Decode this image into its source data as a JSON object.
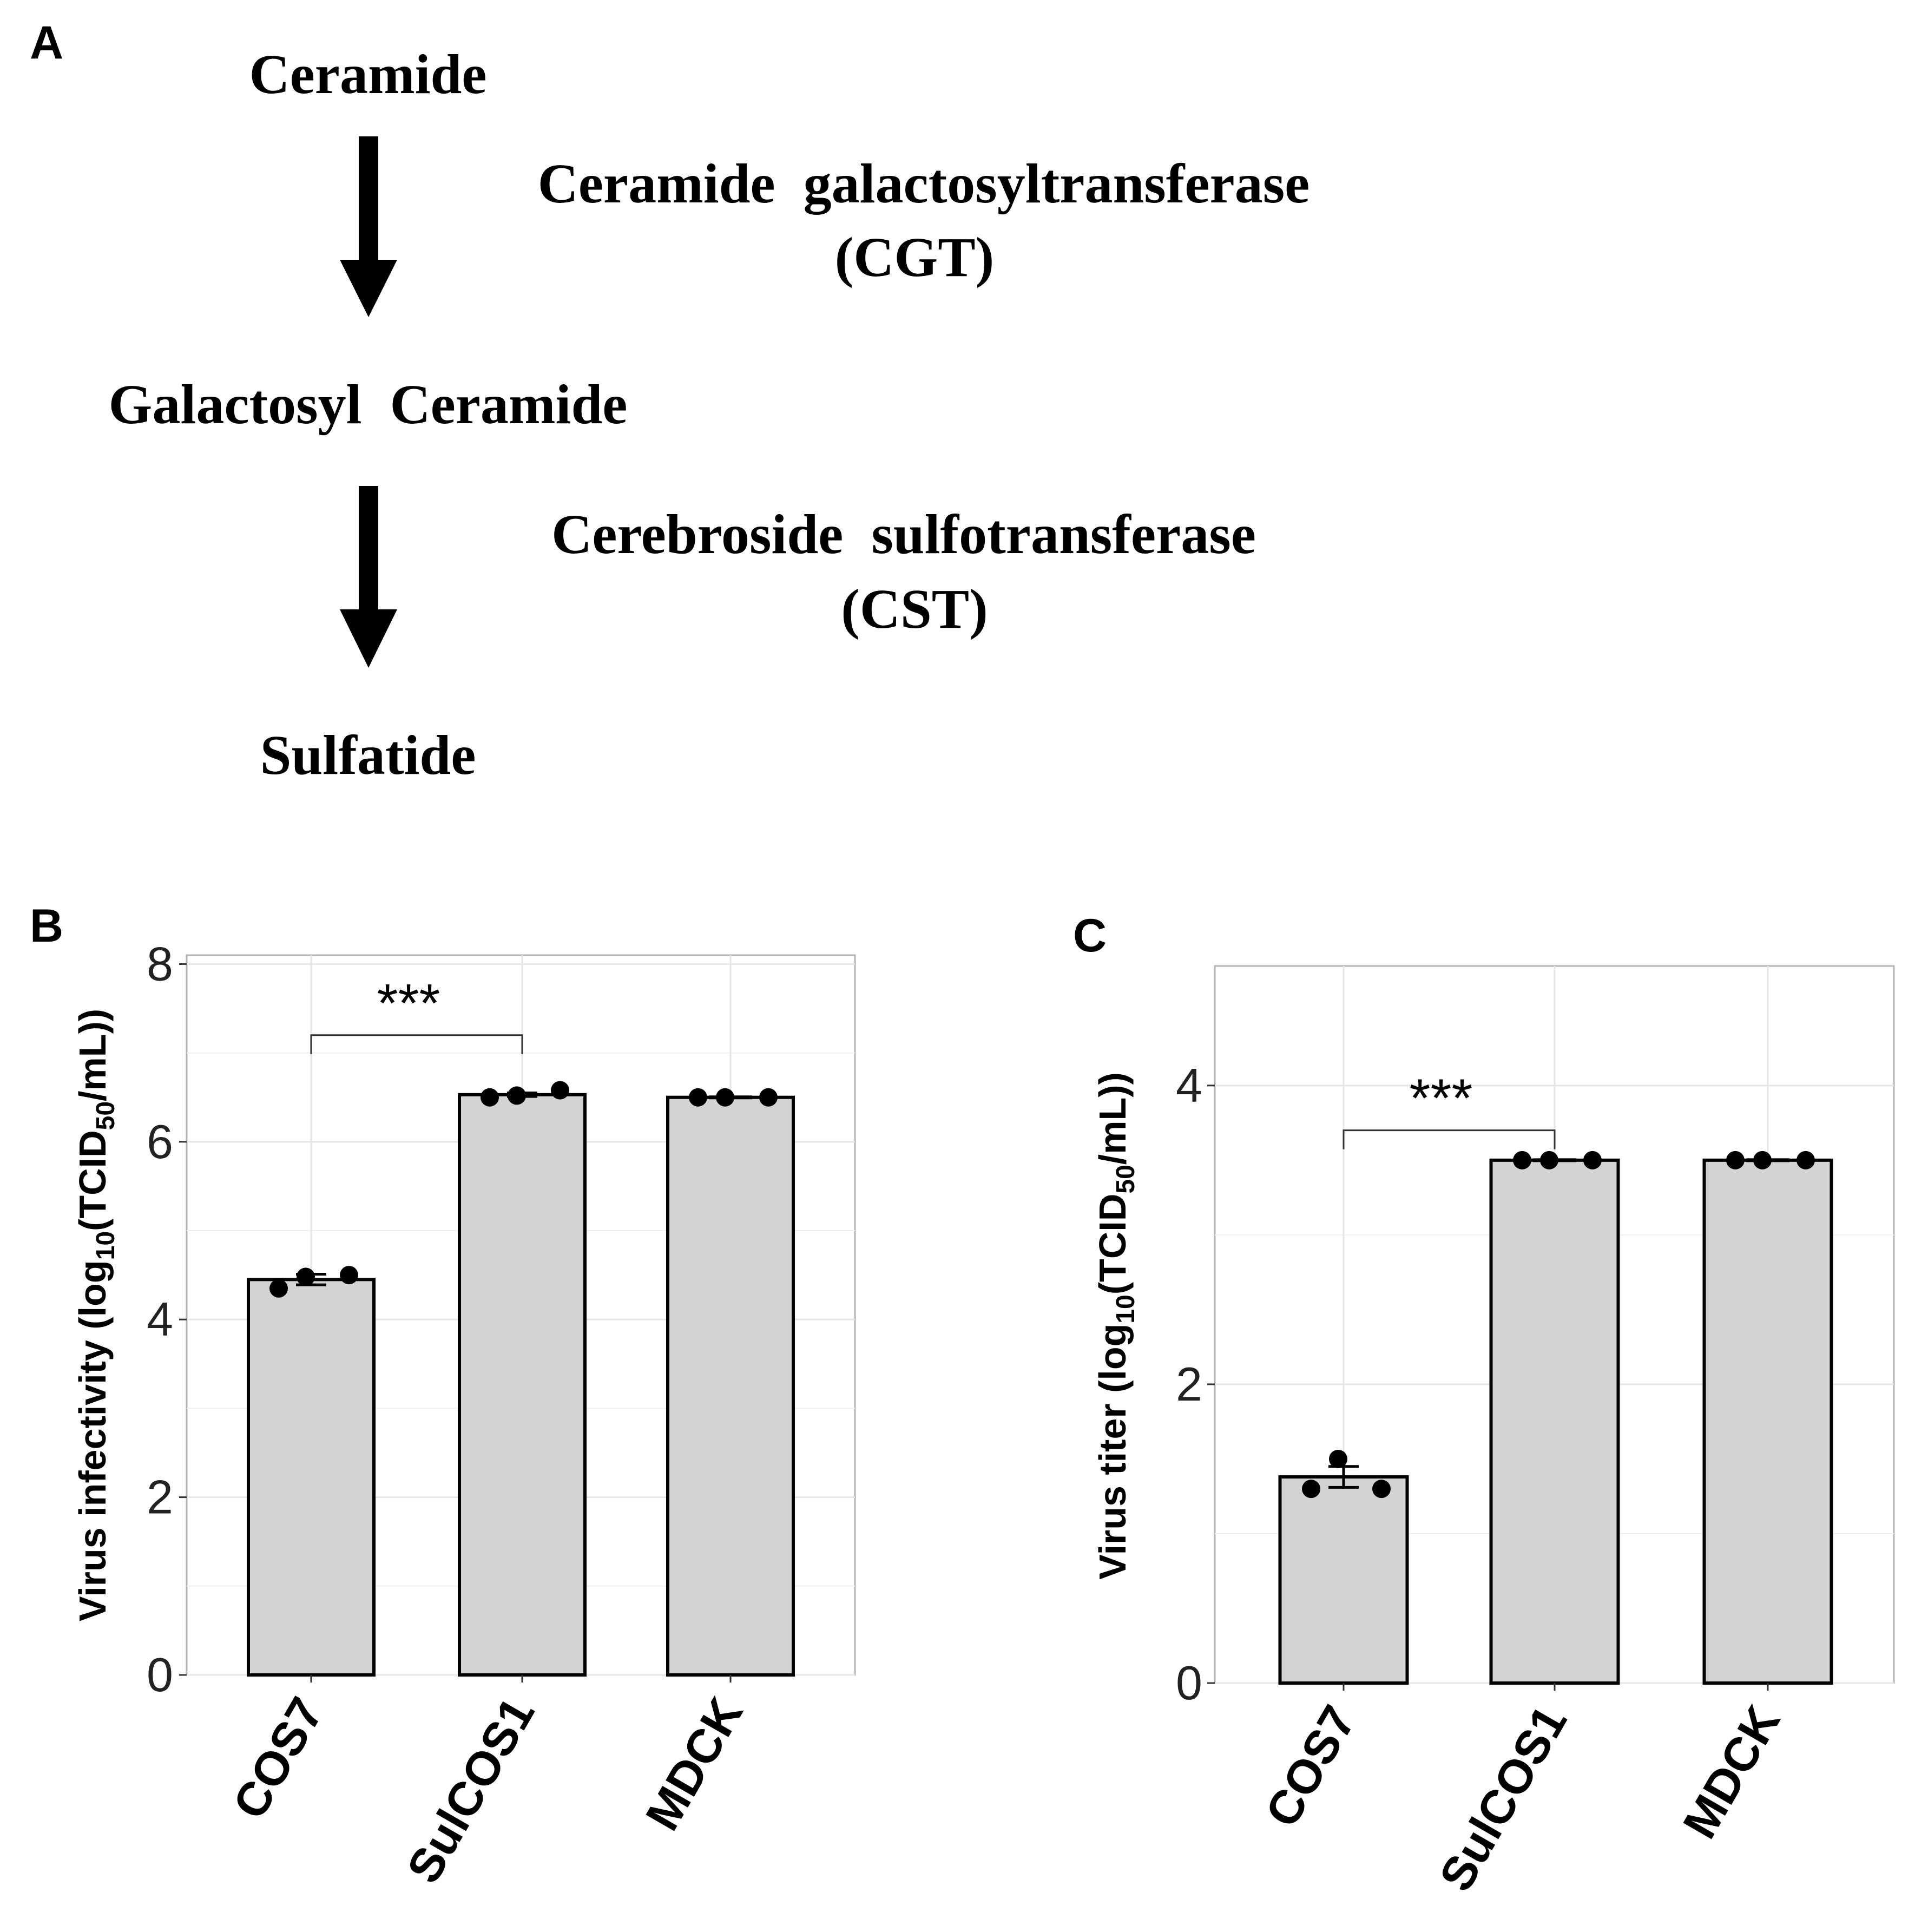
{
  "pathway": {
    "panel_label": "A",
    "compounds": [
      "Ceramide",
      "Galactosyl  Ceramide",
      "Sulfatide"
    ],
    "enzymes": [
      {
        "name": "Ceramide  galactosyltransferase",
        "abbr": "(CGT)"
      },
      {
        "name": "Cerebroside  sulfotransferase",
        "abbr": "(CST)"
      }
    ]
  },
  "chart_data": [
    {
      "type": "bar",
      "panel_label": "B",
      "categories": [
        "COS7",
        "SulCOS1",
        "MDCK"
      ],
      "values": [
        4.45,
        6.53,
        6.5
      ],
      "errors": [
        0.06,
        0.02,
        0.0
      ],
      "points": [
        [
          4.35,
          4.48,
          4.5
        ],
        [
          6.5,
          6.52,
          6.58
        ],
        [
          6.5,
          6.5,
          6.5
        ]
      ],
      "ylabel_main": "Virus infectivity  (log",
      "ylabel_sub": "10",
      "ylabel_mid": "(TCID",
      "ylabel_sub2": "50",
      "ylabel_end": "/mL))",
      "ylim": [
        0,
        8.1
      ],
      "yticks": [
        0,
        2,
        4,
        6,
        8
      ],
      "grid": true,
      "bar_color": "#d3d3d3",
      "significance": {
        "from": 0,
        "to": 1,
        "label": "***",
        "y": 7.2
      }
    },
    {
      "type": "bar",
      "panel_label": "C",
      "categories": [
        "COS7",
        "SulCOS1",
        "MDCK"
      ],
      "values": [
        1.38,
        3.5,
        3.5
      ],
      "errors": [
        0.07,
        0.0,
        0.0
      ],
      "points": [
        [
          1.3,
          1.5,
          1.3
        ],
        [
          3.5,
          3.5,
          3.5
        ],
        [
          3.5,
          3.5,
          3.5
        ]
      ],
      "ylabel_main": "Virus titer  (log",
      "ylabel_sub": "10",
      "ylabel_mid": "(TCID",
      "ylabel_sub2": "50",
      "ylabel_end": "/mL))",
      "ylim": [
        0,
        4.8
      ],
      "yticks": [
        0,
        2,
        4
      ],
      "grid": true,
      "bar_color": "#d3d3d3",
      "significance": {
        "from": 0,
        "to": 1,
        "label": "***",
        "y": 3.7
      }
    }
  ]
}
